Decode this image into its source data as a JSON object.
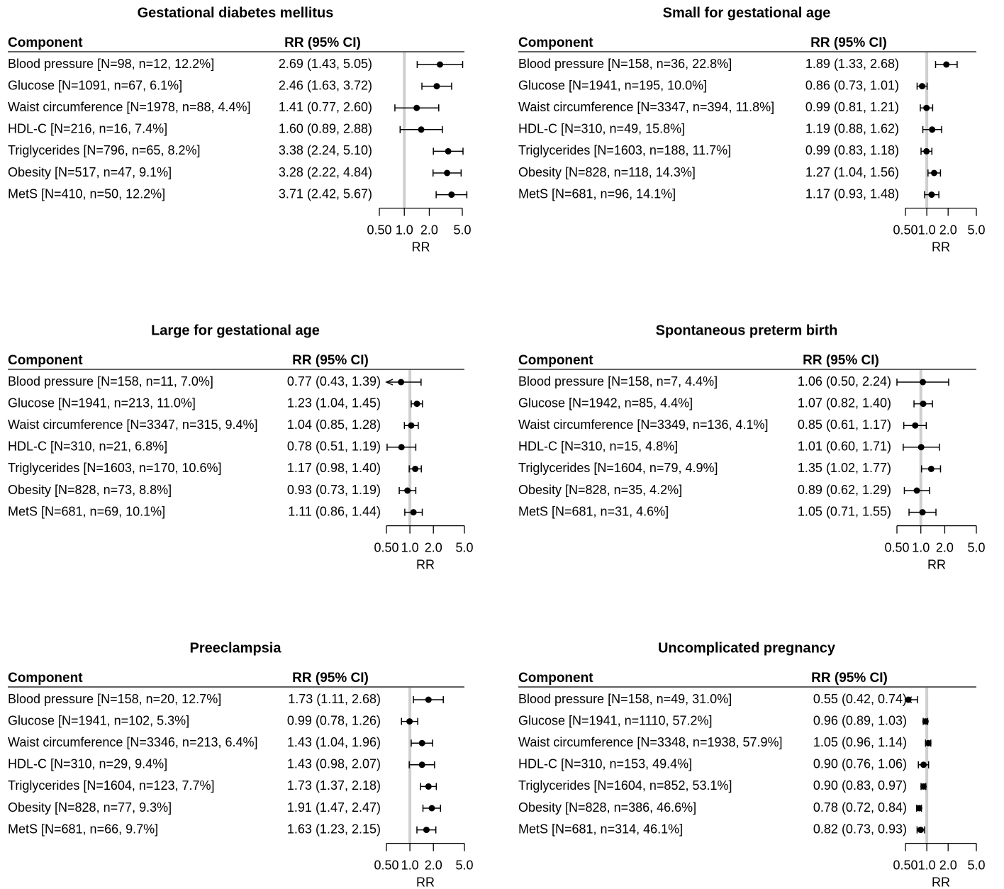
{
  "chart_data": [
    {
      "type": "forest",
      "title": "Gestational diabetes mellitus",
      "column_headers": [
        "Component",
        "RR (95% CI)"
      ],
      "categories": [
        "Blood pressure [N=98, n=12, 12.2%]",
        "Glucose [N=1091, n=67, 6.1%]",
        "Waist circumference [N=1978, n=88, 4.4%]",
        "HDL-C [N=216, n=16, 7.4%]",
        "Triglycerides [N=796, n=65, 8.2%]",
        "Obesity [N=517, n=47, 9.1%]",
        "MetS [N=410, n=50, 12.2%]"
      ],
      "values": [
        2.69,
        2.46,
        1.41,
        1.6,
        3.38,
        3.28,
        3.71
      ],
      "lower": [
        1.43,
        1.63,
        0.77,
        0.89,
        2.24,
        2.22,
        2.42
      ],
      "upper": [
        5.05,
        3.72,
        2.6,
        2.88,
        5.1,
        4.84,
        5.67
      ],
      "value_labels": [
        "2.69 (1.43, 5.05)",
        "2.46 (1.63, 3.72)",
        "1.41 (0.77, 2.60)",
        "1.60 (0.89, 2.88)",
        "3.38 (2.24, 5.10)",
        "3.28 (2.22, 4.84)",
        "3.71 (2.42, 5.67)"
      ],
      "xlim": [
        0.5,
        5
      ],
      "xticks": [
        {
          "value": 0.5,
          "label": "0.50"
        },
        {
          "value": 1,
          "label": "1.0"
        },
        {
          "value": 2,
          "label": "2.0"
        },
        {
          "value": 5,
          "label": "5.0"
        }
      ],
      "xlabel": "RR",
      "log_scale": true,
      "reference_line": 1
    },
    {
      "type": "forest",
      "title": "Small for gestational age",
      "column_headers": [
        "Component",
        "RR (95% CI)"
      ],
      "categories": [
        "Blood pressure [N=158, n=36, 22.8%]",
        "Glucose [N=1941, n=195, 10.0%]",
        "Waist circumference [N=3347, n=394, 11.8%]",
        "HDL-C [N=310, n=49, 15.8%]",
        "Triglycerides [N=1603, n=188, 11.7%]",
        "Obesity [N=828, n=118, 14.3%]",
        "MetS [N=681, n=96, 14.1%]"
      ],
      "values": [
        1.89,
        0.86,
        0.99,
        1.19,
        0.99,
        1.27,
        1.17
      ],
      "lower": [
        1.33,
        0.73,
        0.81,
        0.88,
        0.83,
        1.04,
        0.93
      ],
      "upper": [
        2.68,
        1.01,
        1.21,
        1.62,
        1.18,
        1.56,
        1.48
      ],
      "value_labels": [
        "1.89 (1.33, 2.68)",
        "0.86 (0.73, 1.01)",
        "0.99 (0.81, 1.21)",
        "1.19 (0.88, 1.62)",
        "0.99 (0.83, 1.18)",
        "1.27 (1.04, 1.56)",
        "1.17 (0.93, 1.48)"
      ],
      "xlim": [
        0.5,
        5
      ],
      "xticks": [
        {
          "value": 0.5,
          "label": "0.50"
        },
        {
          "value": 1,
          "label": "1.0"
        },
        {
          "value": 2,
          "label": "2.0"
        },
        {
          "value": 5,
          "label": "5.0"
        }
      ],
      "xlabel": "RR",
      "log_scale": true,
      "reference_line": 1
    },
    {
      "type": "forest",
      "title": "Large for gestational age",
      "column_headers": [
        "Component",
        "RR (95% CI)"
      ],
      "categories": [
        "Blood pressure [N=158, n=11, 7.0%]",
        "Glucose [N=1941, n=213, 11.0%]",
        "Waist circumference [N=3347, n=315, 9.4%]",
        "HDL-C [N=310, n=21, 6.8%]",
        "Triglycerides [N=1603, n=170, 10.6%]",
        "Obesity [N=828, n=73, 8.8%]",
        "MetS [N=681, n=69, 10.1%]"
      ],
      "values": [
        0.77,
        1.23,
        1.04,
        0.78,
        1.17,
        0.93,
        1.11
      ],
      "lower": [
        0.43,
        1.04,
        0.85,
        0.51,
        0.98,
        0.73,
        0.86
      ],
      "upper": [
        1.39,
        1.45,
        1.28,
        1.19,
        1.4,
        1.19,
        1.44
      ],
      "value_labels": [
        "0.77 (0.43, 1.39)",
        "1.23 (1.04, 1.45)",
        "1.04 (0.85, 1.28)",
        "0.78 (0.51, 1.19)",
        "1.17 (0.98, 1.40)",
        "0.93 (0.73, 1.19)",
        "1.11 (0.86, 1.44)"
      ],
      "xlim": [
        0.5,
        5
      ],
      "xticks": [
        {
          "value": 0.5,
          "label": "0.50"
        },
        {
          "value": 1,
          "label": "1.0"
        },
        {
          "value": 2,
          "label": "2.0"
        },
        {
          "value": 5,
          "label": "5.0"
        }
      ],
      "xlabel": "RR",
      "log_scale": true,
      "reference_line": 1
    },
    {
      "type": "forest",
      "title": "Spontaneous preterm birth",
      "column_headers": [
        "Component",
        "RR (95% CI)"
      ],
      "categories": [
        "Blood pressure [N=158, n=7, 4.4%]",
        "Glucose [N=1942, n=85, 4.4%]",
        "Waist circumference [N=3349, n=136, 4.1%]",
        "HDL-C [N=310, n=15, 4.8%]",
        "Triglycerides [N=1604, n=79, 4.9%]",
        "Obesity [N=828, n=35, 4.2%]",
        "MetS [N=681, n=31, 4.6%]"
      ],
      "values": [
        1.06,
        1.07,
        0.85,
        1.01,
        1.35,
        0.89,
        1.05
      ],
      "lower": [
        0.5,
        0.82,
        0.61,
        0.6,
        1.02,
        0.62,
        0.71
      ],
      "upper": [
        2.24,
        1.4,
        1.17,
        1.71,
        1.77,
        1.29,
        1.55
      ],
      "value_labels": [
        "1.06 (0.50, 2.24)",
        "1.07 (0.82, 1.40)",
        "0.85 (0.61, 1.17)",
        "1.01 (0.60, 1.71)",
        "1.35 (1.02, 1.77)",
        "0.89 (0.62, 1.29)",
        "1.05 (0.71, 1.55)"
      ],
      "xlim": [
        0.5,
        5
      ],
      "xticks": [
        {
          "value": 0.5,
          "label": "0.50"
        },
        {
          "value": 1,
          "label": "1.0"
        },
        {
          "value": 2,
          "label": "2.0"
        },
        {
          "value": 5,
          "label": "5.0"
        }
      ],
      "xlabel": "RR",
      "log_scale": true,
      "reference_line": 1
    },
    {
      "type": "forest",
      "title": "Preeclampsia",
      "column_headers": [
        "Component",
        "RR (95% CI)"
      ],
      "categories": [
        "Blood pressure [N=158, n=20, 12.7%]",
        "Glucose [N=1941, n=102, 5.3%]",
        "Waist circumference [N=3346, n=213, 6.4%]",
        "HDL-C [N=310, n=29, 9.4%]",
        "Triglycerides [N=1604, n=123, 7.7%]",
        "Obesity [N=828, n=77, 9.3%]",
        "MetS [N=681, n=66, 9.7%]"
      ],
      "values": [
        1.73,
        0.99,
        1.43,
        1.43,
        1.73,
        1.91,
        1.63
      ],
      "lower": [
        1.11,
        0.78,
        1.04,
        0.98,
        1.37,
        1.47,
        1.23
      ],
      "upper": [
        2.68,
        1.26,
        1.96,
        2.07,
        2.18,
        2.47,
        2.15
      ],
      "value_labels": [
        "1.73 (1.11, 2.68)",
        "0.99 (0.78, 1.26)",
        "1.43 (1.04, 1.96)",
        "1.43 (0.98, 2.07)",
        "1.73 (1.37, 2.18)",
        "1.91 (1.47, 2.47)",
        "1.63 (1.23, 2.15)"
      ],
      "xlim": [
        0.5,
        5
      ],
      "xticks": [
        {
          "value": 0.5,
          "label": "0.50"
        },
        {
          "value": 1,
          "label": "1.0"
        },
        {
          "value": 2,
          "label": "2.0"
        },
        {
          "value": 5,
          "label": "5.0"
        }
      ],
      "xlabel": "RR",
      "log_scale": true,
      "reference_line": 1
    },
    {
      "type": "forest",
      "title": "Uncomplicated pregnancy",
      "column_headers": [
        "Component",
        "RR (95% CI)"
      ],
      "categories": [
        "Blood pressure [N=158, n=49, 31.0%]",
        "Glucose [N=1941, n=1110, 57.2%]",
        "Waist circumference [N=3348, n=1938, 57.9%]",
        "HDL-C [N=310, n=153, 49.4%]",
        "Triglycerides [N=1604, n=852, 53.1%]",
        "Obesity [N=828, n=386, 46.6%]",
        "MetS [N=681, n=314, 46.1%]"
      ],
      "values": [
        0.55,
        0.96,
        1.05,
        0.9,
        0.9,
        0.78,
        0.82
      ],
      "lower": [
        0.42,
        0.89,
        0.96,
        0.76,
        0.83,
        0.72,
        0.73
      ],
      "upper": [
        0.74,
        1.03,
        1.14,
        1.06,
        0.97,
        0.84,
        0.93
      ],
      "value_labels": [
        "0.55 (0.42, 0.74)",
        "0.96 (0.89, 1.03)",
        "1.05 (0.96, 1.14)",
        "0.90 (0.76, 1.06)",
        "0.90 (0.83, 0.97)",
        "0.78 (0.72, 0.84)",
        "0.82 (0.73, 0.93)"
      ],
      "xlim": [
        0.5,
        5
      ],
      "xticks": [
        {
          "value": 0.5,
          "label": "0.50"
        },
        {
          "value": 1,
          "label": "1.0"
        },
        {
          "value": 2,
          "label": "2.0"
        },
        {
          "value": 5,
          "label": "5.0"
        }
      ],
      "xlabel": "RR",
      "log_scale": true,
      "reference_line": 1
    }
  ]
}
